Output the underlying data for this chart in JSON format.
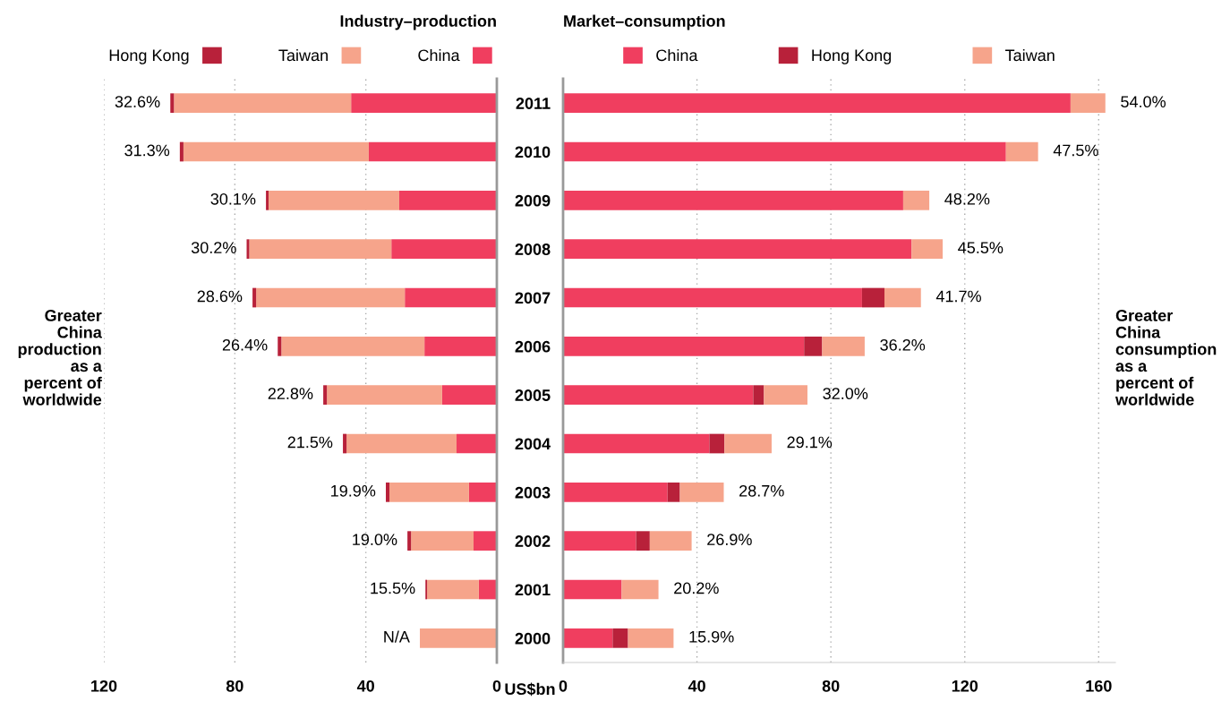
{
  "chart_data": [
    {
      "type": "bar",
      "orientation": "horizontal",
      "stacked": true,
      "title": "Industry–production",
      "categories": [
        "2011",
        "2010",
        "2009",
        "2008",
        "2007",
        "2006",
        "2005",
        "2004",
        "2003",
        "2002",
        "2001",
        "2000"
      ],
      "series": [
        {
          "name": "China",
          "color": "#f03e5f",
          "values": [
            44.5,
            39.1,
            29.8,
            32.2,
            28.1,
            22.1,
            16.7,
            12.3,
            8.5,
            7.1,
            5.5,
            0
          ]
        },
        {
          "name": "Taiwan",
          "color": "#f6a48b",
          "values": [
            54.1,
            56.6,
            39.9,
            43.4,
            45.4,
            43.7,
            35.2,
            33.6,
            24.3,
            19.1,
            15.8,
            23.5
          ]
        },
        {
          "name": "Hong Kong",
          "color": "#b8213a",
          "values": [
            1.1,
            1.1,
            0.8,
            0.8,
            1.1,
            1.1,
            1.1,
            1.1,
            1.1,
            1.1,
            0.5,
            0
          ]
        }
      ],
      "value_labels": [
        "32.6%",
        "31.3%",
        "30.1%",
        "30.2%",
        "28.6%",
        "26.4%",
        "22.8%",
        "21.5%",
        "19.9%",
        "19.0%",
        "15.5%",
        "N/A"
      ],
      "xlim": [
        120,
        0
      ],
      "xticks": [
        120,
        80,
        40,
        0
      ],
      "grid": "x",
      "legend": "top",
      "tick_labels": "x",
      "annotations": [
        "Greater\nChina\nproduction\nas a\npercent of\nworldwide"
      ]
    },
    {
      "type": "bar",
      "orientation": "horizontal",
      "stacked": true,
      "title": "Market–consumption",
      "xlabel": "US$bn",
      "categories": [
        "2011",
        "2010",
        "2009",
        "2008",
        "2007",
        "2006",
        "2005",
        "2004",
        "2003",
        "2002",
        "2001",
        "2000"
      ],
      "series": [
        {
          "name": "China",
          "color": "#f03e5f",
          "values": [
            151.6,
            132.3,
            101.6,
            104.1,
            89.3,
            72.0,
            56.8,
            43.7,
            31.2,
            21.8,
            17.5,
            14.8
          ]
        },
        {
          "name": "Hong Kong",
          "color": "#b8213a",
          "values": [
            0,
            0,
            0,
            0,
            6.7,
            5.4,
            3.2,
            4.5,
            3.7,
            4.1,
            0,
            4.6
          ]
        },
        {
          "name": "Taiwan",
          "color": "#f6a48b",
          "values": [
            10.4,
            9.6,
            7.8,
            9.3,
            10.9,
            12.7,
            13.0,
            14.1,
            13.1,
            12.5,
            11.0,
            13.6
          ]
        }
      ],
      "value_labels": [
        "54.0%",
        "47.5%",
        "48.2%",
        "45.5%",
        "41.7%",
        "36.2%",
        "32.0%",
        "29.1%",
        "28.7%",
        "26.9%",
        "20.2%",
        "15.9%"
      ],
      "xlim": [
        0,
        165
      ],
      "xticks": [
        0,
        40,
        80,
        120,
        160
      ],
      "grid": "x",
      "legend": "top",
      "annotations": [
        "Greater\nChina\nconsumption\nas a\npercent of\nworldwide"
      ]
    }
  ]
}
